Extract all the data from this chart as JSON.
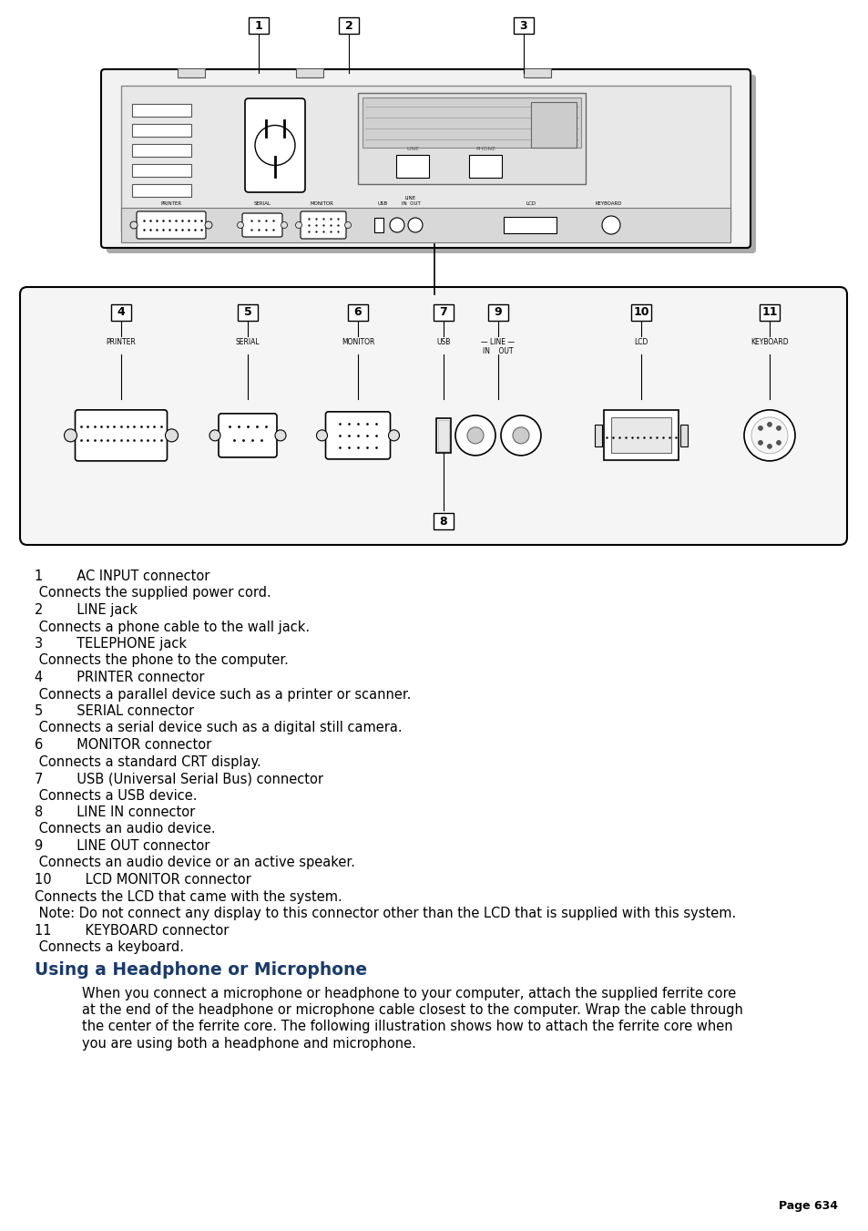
{
  "page_bg": "#ffffff",
  "title_text": "Using a Headphone or Microphone",
  "title_color": "#1a3a6b",
  "page_number": "Page 634",
  "body_lines": [
    [
      "1",
      "AC INPUT connector",
      false
    ],
    [
      " Connects the supplied power cord.",
      "",
      false
    ],
    [
      "2",
      "LINE jack",
      false
    ],
    [
      " Connects a phone cable to the wall jack.",
      "",
      false
    ],
    [
      "3",
      "TELEPHONE jack",
      false
    ],
    [
      " Connects the phone to the computer.",
      "",
      false
    ],
    [
      "4",
      "PRINTER connector",
      false
    ],
    [
      " Connects a parallel device such as a printer or scanner.",
      "",
      false
    ],
    [
      "5",
      "SERIAL connector",
      false
    ],
    [
      " Connects a serial device such as a digital still camera.",
      "",
      false
    ],
    [
      "6",
      "MONITOR connector",
      false
    ],
    [
      " Connects a standard CRT display.",
      "",
      false
    ],
    [
      "7",
      "USB (Universal Serial Bus) connector",
      false
    ],
    [
      " Connects a USB device.",
      "",
      false
    ],
    [
      "8",
      "LINE IN connector",
      false
    ],
    [
      " Connects an audio device.",
      "",
      false
    ],
    [
      "9",
      "LINE OUT connector",
      false
    ],
    [
      " Connects an audio device or an active speaker.",
      "",
      false
    ],
    [
      "10",
      "LCD MONITOR connector",
      false
    ],
    [
      "Connects the LCD that came with the system.",
      "",
      false
    ],
    [
      " Note: Do not connect any display to this connector other than the LCD that is supplied with this system.",
      "",
      false
    ],
    [
      "11",
      "KEYBOARD connector",
      false
    ],
    [
      " Connects a keyboard.",
      "",
      false
    ]
  ],
  "paragraph_text": "When you connect a microphone or headphone to your computer, attach the supplied ferrite core\nat the end of the headphone or microphone cable closest to the computer. Wrap the cable through\nthe center of the ferrite core. The following illustration shows how to attach the ferrite core when\nyou are using both a headphone and microphone.",
  "fig_w": 9.54,
  "fig_h": 13.51,
  "dpi": 100
}
